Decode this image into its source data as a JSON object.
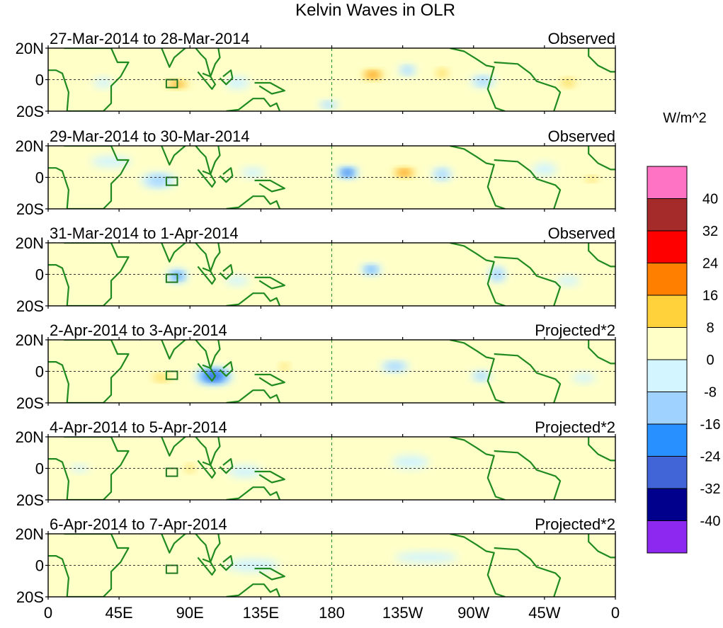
{
  "chart_data": {
    "type": "heatmap",
    "title": "Kelvin Waves in OLR",
    "variable": "OLR anomaly",
    "units_label": "W/m^2",
    "x_ticks": [
      "0",
      "45E",
      "90E",
      "135E",
      "180",
      "135W",
      "90W",
      "45W",
      "0"
    ],
    "x_tick_degE": [
      0,
      45,
      90,
      135,
      180,
      225,
      270,
      315,
      360
    ],
    "y_ticks": [
      "20N",
      "0",
      "20S"
    ],
    "y_tick_lat": [
      20,
      0,
      -20
    ],
    "lon_range": [
      0,
      360
    ],
    "lat_range": [
      -20,
      20
    ],
    "box_marker": {
      "lon_range": [
        75,
        82
      ],
      "lat_range": [
        -5,
        0
      ]
    },
    "colorbar": {
      "levels": [
        "40",
        "32",
        "24",
        "16",
        "8",
        "0",
        "-8",
        "-16",
        "-24",
        "-32",
        "-40"
      ],
      "colors": [
        "#ff73c4",
        "#a52a2a",
        "#ff0000",
        "#ff7f00",
        "#ffd23c",
        "#ffffc8",
        "#d2f5ff",
        "#a0d2ff",
        "#2891ff",
        "#4164d7",
        "#00008c",
        "#8c28f0"
      ]
    },
    "panels": [
      {
        "date": "27-Mar-2014 to 28-Mar-2014",
        "label": "Observed",
        "anomalies": [
          {
            "lon": 82,
            "lat": -3,
            "rx": 12,
            "ry": 3.5,
            "v": 24
          },
          {
            "lon": 206,
            "lat": 3,
            "rx": 10,
            "ry": 4,
            "v": 28
          },
          {
            "lon": 228,
            "lat": 6,
            "rx": 7,
            "ry": 4,
            "v": -18
          },
          {
            "lon": 250,
            "lat": 4,
            "rx": 8,
            "ry": 5,
            "v": 16
          },
          {
            "lon": 276,
            "lat": -1,
            "rx": 10,
            "ry": 5,
            "v": -16
          },
          {
            "lon": 330,
            "lat": -2,
            "rx": 8,
            "ry": 4,
            "v": 22
          },
          {
            "lon": 120,
            "lat": -2,
            "rx": 10,
            "ry": 5,
            "v": -14
          },
          {
            "lon": 35,
            "lat": -2,
            "rx": 8,
            "ry": 4,
            "v": -12
          },
          {
            "lon": 140,
            "lat": -14,
            "rx": 12,
            "ry": 4,
            "v": 14
          },
          {
            "lon": 178,
            "lat": -16,
            "rx": 8,
            "ry": 3,
            "v": -18
          },
          {
            "lon": 160,
            "lat": 12,
            "rx": 14,
            "ry": 5,
            "v": 8
          },
          {
            "lon": 60,
            "lat": 10,
            "rx": 18,
            "ry": 5,
            "v": 6
          }
        ]
      },
      {
        "date": "29-Mar-2014 to 30-Mar-2014",
        "label": "Observed",
        "anomalies": [
          {
            "lon": 70,
            "lat": -2,
            "rx": 14,
            "ry": 6,
            "v": -18
          },
          {
            "lon": 190,
            "lat": 3,
            "rx": 8,
            "ry": 4,
            "v": -34
          },
          {
            "lon": 226,
            "lat": 3,
            "rx": 11,
            "ry": 4,
            "v": 26
          },
          {
            "lon": 250,
            "lat": 2,
            "rx": 8,
            "ry": 5,
            "v": -18
          },
          {
            "lon": 315,
            "lat": 5,
            "rx": 10,
            "ry": 5,
            "v": -14
          },
          {
            "lon": 345,
            "lat": -1,
            "rx": 8,
            "ry": 3,
            "v": 18
          },
          {
            "lon": 275,
            "lat": 0,
            "rx": 6,
            "ry": 4,
            "v": 12
          },
          {
            "lon": 110,
            "lat": -1,
            "rx": 8,
            "ry": 4,
            "v": 12
          },
          {
            "lon": 130,
            "lat": 3,
            "rx": 10,
            "ry": 4,
            "v": -12
          },
          {
            "lon": 40,
            "lat": 10,
            "rx": 18,
            "ry": 5,
            "v": -8
          }
        ]
      },
      {
        "date": "31-Mar-2014 to 1-Apr-2014",
        "label": "Observed",
        "anomalies": [
          {
            "lon": 82,
            "lat": -1,
            "rx": 8,
            "ry": 5,
            "v": -26
          },
          {
            "lon": 205,
            "lat": 3,
            "rx": 8,
            "ry": 4,
            "v": -24
          },
          {
            "lon": 285,
            "lat": 0,
            "rx": 7,
            "ry": 6,
            "v": -20
          },
          {
            "lon": 300,
            "lat": 5,
            "rx": 8,
            "ry": 3,
            "v": 12
          },
          {
            "lon": 240,
            "lat": 10,
            "rx": 12,
            "ry": 4,
            "v": 8
          },
          {
            "lon": 120,
            "lat": -4,
            "rx": 10,
            "ry": 4,
            "v": -10
          },
          {
            "lon": 30,
            "lat": 0,
            "rx": 12,
            "ry": 5,
            "v": 6
          },
          {
            "lon": 330,
            "lat": -4,
            "rx": 10,
            "ry": 4,
            "v": -10
          }
        ]
      },
      {
        "date": "2-Apr-2014 to 3-Apr-2014",
        "label": "Projected*2",
        "anomalies": [
          {
            "lon": 105,
            "lat": -3,
            "rx": 14,
            "ry": 6,
            "v": -38
          },
          {
            "lon": 72,
            "lat": -4,
            "rx": 12,
            "ry": 4,
            "v": 18
          },
          {
            "lon": 150,
            "lat": 3,
            "rx": 6,
            "ry": 4,
            "v": 16
          },
          {
            "lon": 220,
            "lat": 3,
            "rx": 11,
            "ry": 4,
            "v": -22
          },
          {
            "lon": 275,
            "lat": -3,
            "rx": 8,
            "ry": 4,
            "v": -18
          },
          {
            "lon": 25,
            "lat": 0,
            "rx": 8,
            "ry": 3,
            "v": 14
          },
          {
            "lon": 250,
            "lat": 10,
            "rx": 10,
            "ry": 4,
            "v": 8
          },
          {
            "lon": 130,
            "lat": 10,
            "rx": 10,
            "ry": 4,
            "v": 12
          },
          {
            "lon": 340,
            "lat": -4,
            "rx": 10,
            "ry": 4,
            "v": -10
          }
        ]
      },
      {
        "date": "4-Apr-2014 to 5-Apr-2014",
        "label": "Projected*2",
        "anomalies": [
          {
            "lon": 90,
            "lat": 0,
            "rx": 5,
            "ry": 4,
            "v": 20
          },
          {
            "lon": 125,
            "lat": -2,
            "rx": 14,
            "ry": 5,
            "v": -12
          },
          {
            "lon": 60,
            "lat": -8,
            "rx": 14,
            "ry": 3,
            "v": 10
          },
          {
            "lon": 280,
            "lat": -4,
            "rx": 10,
            "ry": 4,
            "v": 10
          },
          {
            "lon": 320,
            "lat": 0,
            "rx": 8,
            "ry": 3,
            "v": 10
          },
          {
            "lon": 230,
            "lat": 4,
            "rx": 14,
            "ry": 5,
            "v": -6
          },
          {
            "lon": 20,
            "lat": 0,
            "rx": 8,
            "ry": 3,
            "v": -10
          }
        ]
      },
      {
        "date": "6-Apr-2014 to 7-Apr-2014",
        "label": "Projected*2",
        "anomalies": [
          {
            "lon": 60,
            "lat": 0,
            "rx": 30,
            "ry": 8,
            "v": 6
          },
          {
            "lon": 130,
            "lat": 0,
            "rx": 20,
            "ry": 5,
            "v": -6
          },
          {
            "lon": 240,
            "lat": 5,
            "rx": 24,
            "ry": 4,
            "v": -6
          },
          {
            "lon": 300,
            "lat": -5,
            "rx": 10,
            "ry": 4,
            "v": 10
          },
          {
            "lon": 20,
            "lat": 10,
            "rx": 10,
            "ry": 4,
            "v": 6
          }
        ]
      }
    ]
  }
}
